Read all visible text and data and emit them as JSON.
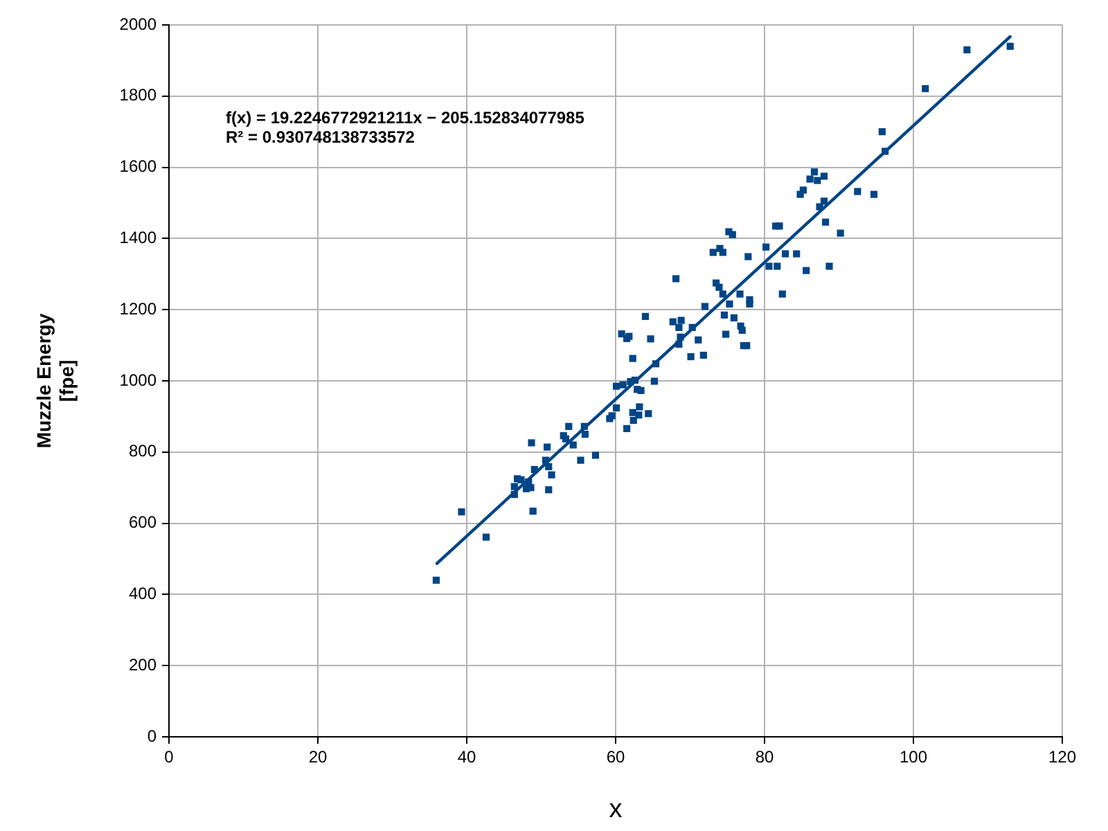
{
  "chart_data": {
    "type": "scatter",
    "xlabel": "x",
    "ylabel": "Muzzle Energy\n[fpe]",
    "annotations": [
      "f(x) = 19.2246772921211x − 205.152834077985",
      "R² = 0.930748138733572"
    ],
    "x": [
      35.9,
      39.3,
      42.6,
      46.4,
      46.4,
      46.8,
      47.3,
      48.0,
      48.3,
      48.6,
      48.7,
      48.9,
      49.1,
      50.6,
      50.8,
      51.0,
      51.0,
      51.4,
      53.0,
      53.3,
      53.7,
      54.3,
      55.3,
      55.8,
      55.9,
      57.3,
      59.2,
      59.5,
      60.1,
      60.1,
      60.8,
      61.0,
      61.5,
      61.5,
      61.8,
      62.0,
      62.3,
      62.3,
      62.4,
      62.6,
      62.9,
      63.1,
      63.2,
      63.4,
      64.0,
      64.4,
      64.7,
      65.2,
      65.4,
      67.7,
      68.1,
      68.5,
      68.5,
      68.7,
      68.8,
      70.1,
      70.3,
      71.1,
      71.8,
      72.0,
      73.1,
      73.5,
      73.9,
      74.0,
      74.4,
      74.4,
      74.6,
      74.8,
      75.2,
      75.3,
      75.7,
      75.9,
      76.7,
      76.8,
      77.0,
      77.2,
      77.6,
      77.8,
      78.0,
      78.0,
      80.2,
      80.6,
      81.5,
      81.7,
      82.0,
      82.4,
      82.8,
      84.3,
      84.8,
      85.2,
      85.6,
      86.1,
      86.7,
      87.1,
      87.4,
      88.0,
      88.0,
      88.2,
      88.7,
      90.2,
      92.5,
      94.7,
      95.8,
      96.2,
      101.6,
      107.2,
      113.0
    ],
    "series": [
      {
        "color": "#004586",
        "values": [
          440,
          632,
          561,
          681,
          703,
          725,
          722,
          697,
          716,
          700,
          826,
          634,
          751,
          777,
          814,
          759,
          694,
          736,
          846,
          837,
          872,
          820,
          777,
          872,
          850,
          791,
          894,
          902,
          924,
          985,
          1132,
          989,
          866,
          1119,
          1125,
          998,
          911,
          1063,
          889,
          1002,
          976,
          904,
          927,
          973,
          1181,
          908,
          1118,
          999,
          1048,
          1166,
          1287,
          1150,
          1103,
          1123,
          1170,
          1068,
          1150,
          1115,
          1072,
          1209,
          1361,
          1275,
          1263,
          1372,
          1361,
          1244,
          1185,
          1131,
          1419,
          1216,
          1411,
          1177,
          1244,
          1154,
          1142,
          1099,
          1099,
          1349,
          1228,
          1216,
          1376,
          1322,
          1435,
          1322,
          1435,
          1244,
          1357,
          1357,
          1524,
          1536,
          1310,
          1567,
          1587,
          1563,
          1489,
          1575,
          1505,
          1446,
          1322,
          1415,
          1532,
          1524,
          1700,
          1645,
          1821,
          1930,
          1940
        ]
      },
      {
        "type": "line",
        "color": "#004586",
        "x": [
          36,
          113
        ],
        "values": [
          487,
          1967
        ],
        "marker": "none"
      }
    ],
    "xlim": [
      0,
      120
    ],
    "ylim": [
      0,
      2000
    ],
    "xticks": [
      0,
      20,
      40,
      60,
      80,
      100,
      120
    ],
    "yticks": [
      0,
      200,
      400,
      600,
      800,
      1000,
      1200,
      1400,
      1600,
      1800,
      2000
    ],
    "grid": true,
    "legend": false,
    "marker": "square"
  }
}
